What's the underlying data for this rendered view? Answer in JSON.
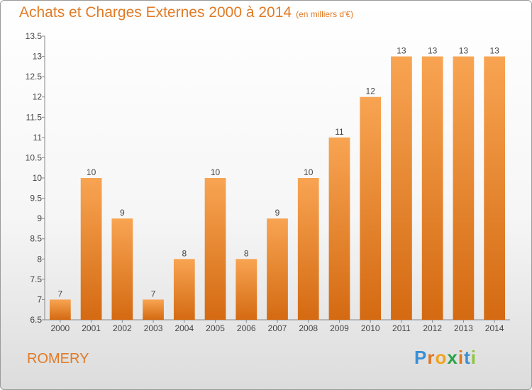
{
  "header": {
    "title": "Achats et Charges Externes 2000 à 2014",
    "subtitle": "(en milliers d'€)"
  },
  "footer": {
    "town": "ROMERY",
    "logo_letters": [
      "P",
      "r",
      "o",
      "x",
      "i",
      "t",
      "i"
    ],
    "logo_colors": [
      "#3a8fd6",
      "#e2761f",
      "#f0a41e",
      "#2aa24a",
      "#e2761f",
      "#3a8fd6",
      "#8cc540"
    ]
  },
  "chart_data": {
    "type": "bar",
    "categories": [
      "2000",
      "2001",
      "2002",
      "2003",
      "2004",
      "2005",
      "2006",
      "2007",
      "2008",
      "2009",
      "2010",
      "2011",
      "2012",
      "2013",
      "2014"
    ],
    "values": [
      7,
      10,
      9,
      7,
      8,
      10,
      8,
      9,
      10,
      11,
      12,
      13,
      13,
      13,
      13
    ],
    "data_labels": [
      "7",
      "10",
      "9",
      "7",
      "8",
      "10",
      "8",
      "9",
      "10",
      "11",
      "12",
      "13",
      "13",
      "13",
      "13"
    ],
    "ylim": [
      6.5,
      13.5
    ],
    "yticks": [
      6.5,
      7,
      7.5,
      8,
      8.5,
      9,
      9.5,
      10,
      10.5,
      11,
      11.5,
      12,
      12.5,
      13,
      13.5
    ],
    "ytick_labels": [
      "6.5",
      "7",
      "7.5",
      "8",
      "8.5",
      "9",
      "9.5",
      "10",
      "10.5",
      "11",
      "11.5",
      "12",
      "12.5",
      "13",
      "13.5"
    ],
    "grid": false,
    "bar_color_top": "#f8a452",
    "bar_color_bottom": "#d46a12"
  }
}
